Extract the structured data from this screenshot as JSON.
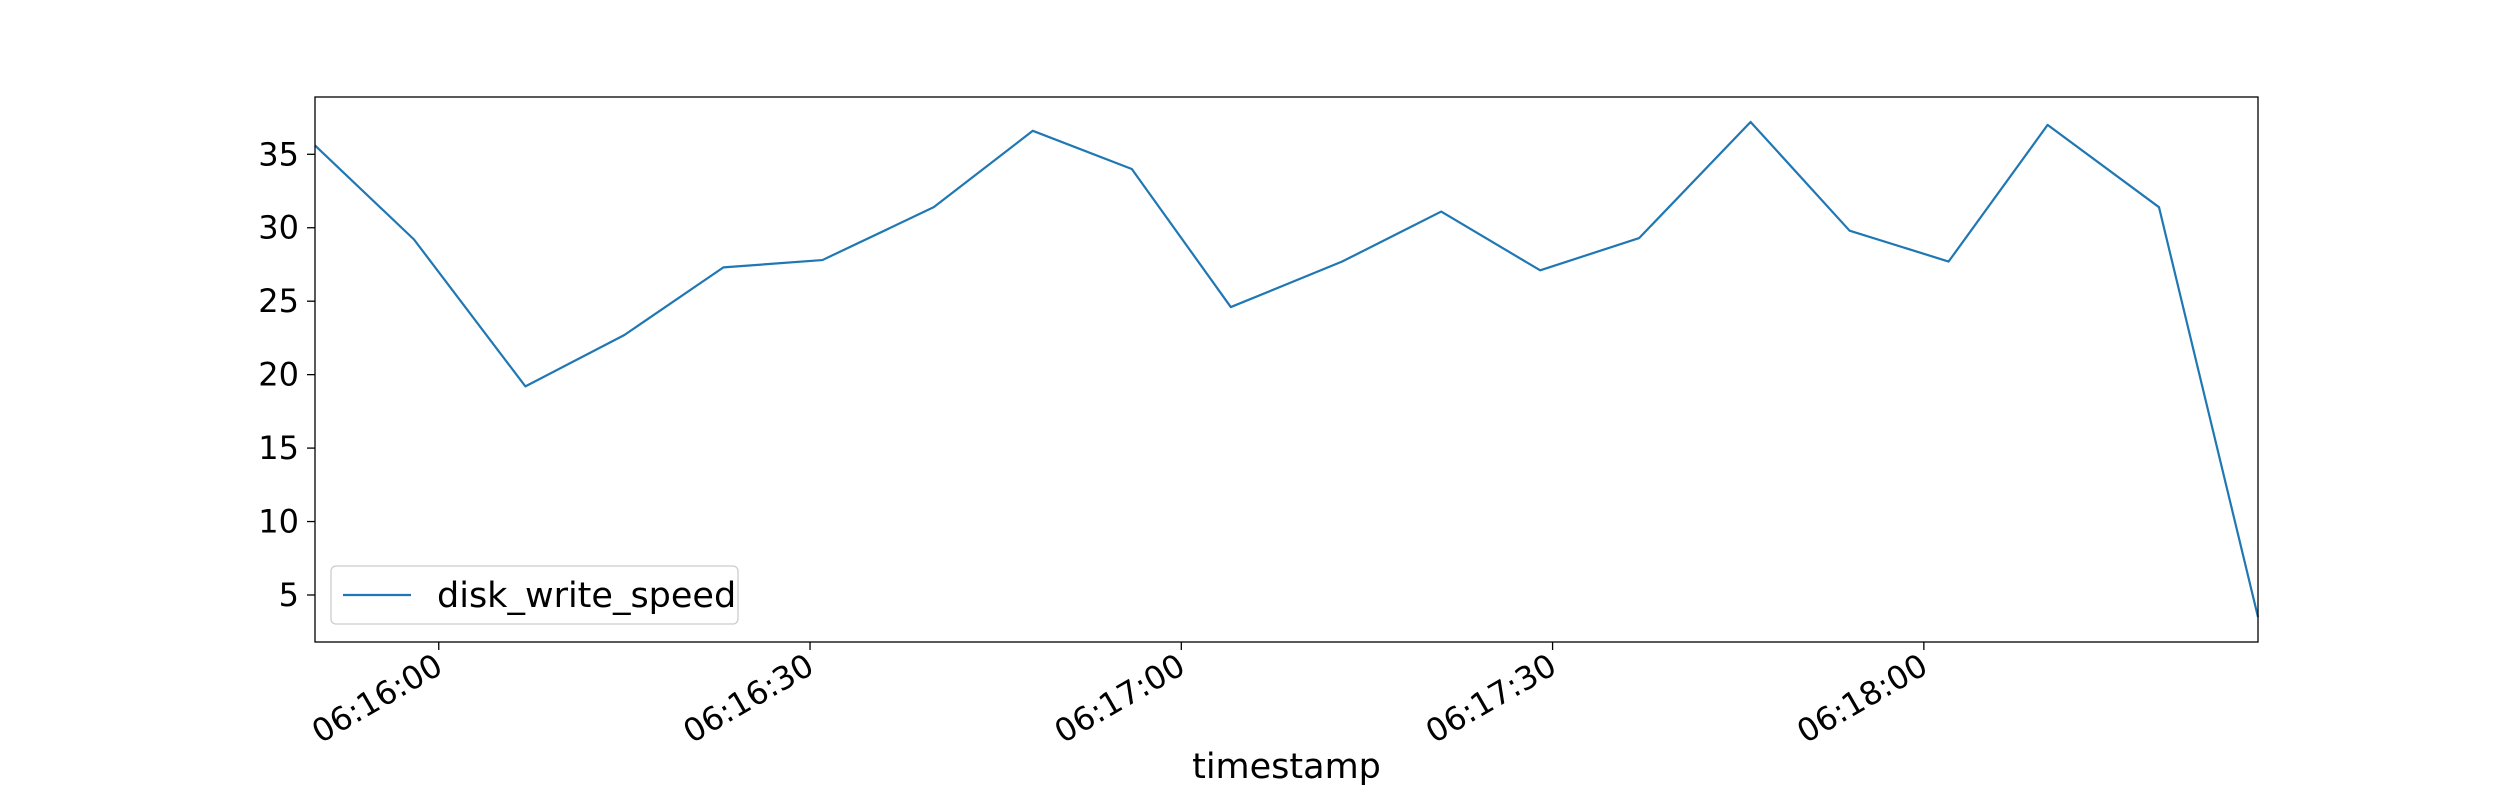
{
  "chart_data": {
    "type": "line",
    "title": "",
    "xlabel": "timestamp",
    "ylabel": "",
    "x": [
      "06:15:50",
      "06:15:58",
      "06:16:07",
      "06:16:15",
      "06:16:23",
      "06:16:31",
      "06:16:40",
      "06:16:48",
      "06:16:56",
      "06:17:04",
      "06:17:13",
      "06:17:21",
      "06:17:29",
      "06:17:37",
      "06:17:46",
      "06:17:54",
      "06:18:02",
      "06:18:10",
      "06:18:19",
      "06:18:27"
    ],
    "x_ticks": [
      "06:16:00",
      "06:16:30",
      "06:17:00",
      "06:17:30",
      "06:18:00"
    ],
    "xlim": [
      "06:15:50",
      "06:18:27"
    ],
    "y_ticks": [
      5,
      10,
      15,
      20,
      25,
      30,
      35
    ],
    "ylim": [
      1.8,
      38.9
    ],
    "series": [
      {
        "name": "disk_write_speed",
        "color": "#1f77b4",
        "values": [
          35.6,
          29.2,
          19.2,
          22.7,
          27.3,
          27.8,
          31.4,
          36.6,
          34.0,
          24.6,
          27.7,
          31.1,
          27.1,
          29.3,
          37.2,
          29.8,
          27.7,
          37.0,
          31.4,
          3.5
        ]
      }
    ],
    "grid": false,
    "legend_position": "lower-left"
  }
}
